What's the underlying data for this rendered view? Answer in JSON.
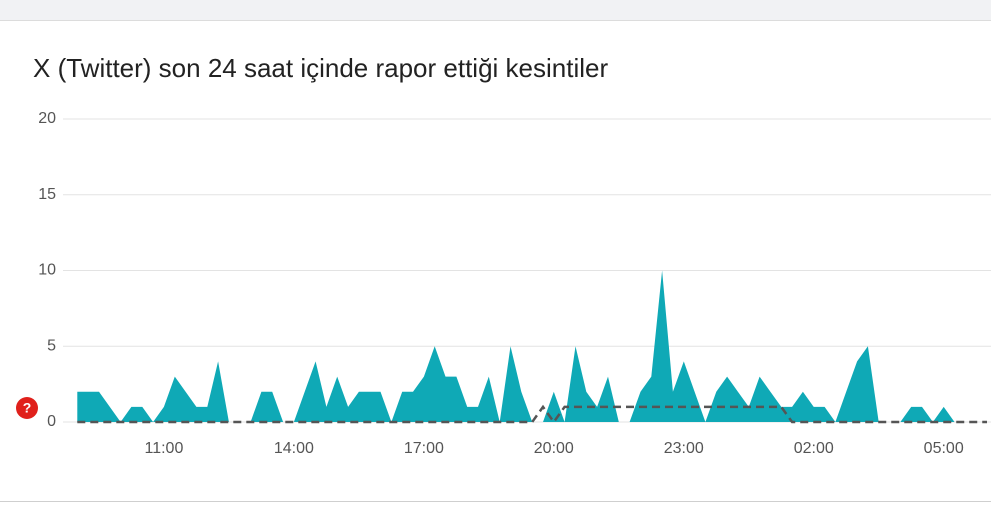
{
  "chart_data": {
    "type": "area",
    "title": "X (Twitter) son 24 saat içinde rapor ettiği kesintiler",
    "categories": [
      null,
      null,
      null,
      null,
      null,
      null,
      null,
      null,
      "11:00",
      null,
      null,
      null,
      null,
      null,
      null,
      null,
      null,
      null,
      null,
      null,
      "14:00",
      null,
      null,
      null,
      null,
      null,
      null,
      null,
      null,
      null,
      null,
      null,
      "17:00",
      null,
      null,
      null,
      null,
      null,
      null,
      null,
      null,
      null,
      null,
      null,
      "20:00",
      null,
      null,
      null,
      null,
      null,
      null,
      null,
      null,
      null,
      null,
      null,
      "23:00",
      null,
      null,
      null,
      null,
      null,
      null,
      null,
      null,
      null,
      null,
      null,
      "02:00",
      null,
      null,
      null,
      null,
      null,
      null,
      null,
      null,
      null,
      null,
      null,
      "05:00",
      null,
      null,
      null,
      null
    ],
    "series": [
      {
        "color": "#0fa9b6",
        "values": [
          2,
          2,
          2,
          1,
          0,
          1,
          1,
          0,
          1,
          3,
          2,
          1,
          1,
          4,
          0,
          0,
          0,
          2,
          2,
          0,
          0,
          2,
          4,
          1,
          3,
          1,
          2,
          2,
          2,
          0,
          2,
          2,
          3,
          5,
          3,
          3,
          1,
          1,
          3,
          0,
          5,
          2,
          0,
          0,
          2,
          0,
          5,
          2,
          1,
          3,
          0,
          0,
          2,
          3,
          10,
          2,
          4,
          2,
          0,
          2,
          3,
          2,
          1,
          3,
          2,
          1,
          1,
          2,
          1,
          1,
          0,
          2,
          4,
          5,
          0,
          0,
          0,
          1,
          1,
          0,
          1,
          0,
          0,
          0,
          0
        ]
      },
      {
        "color": "#555555",
        "dashed": true,
        "values": [
          0,
          0,
          0,
          0,
          0,
          0,
          0,
          0,
          0,
          0,
          0,
          0,
          0,
          0,
          0,
          0,
          0,
          0,
          0,
          0,
          0,
          0,
          0,
          0,
          0,
          0,
          0,
          0,
          0,
          0,
          0,
          0,
          0,
          0,
          0,
          0,
          0,
          0,
          0,
          0,
          0,
          0,
          0,
          1,
          0,
          1,
          1,
          1,
          1,
          1,
          1,
          1,
          1,
          1,
          1,
          1,
          1,
          1,
          1,
          1,
          1,
          1,
          1,
          1,
          1,
          1,
          0,
          0,
          0,
          0,
          0,
          0,
          0,
          0,
          0,
          0,
          0,
          0,
          0,
          0,
          0,
          0,
          0,
          0,
          0
        ]
      }
    ],
    "ylim": [
      0,
      20
    ],
    "yticks": [
      0,
      5,
      10,
      15,
      20
    ],
    "grid": true
  }
}
